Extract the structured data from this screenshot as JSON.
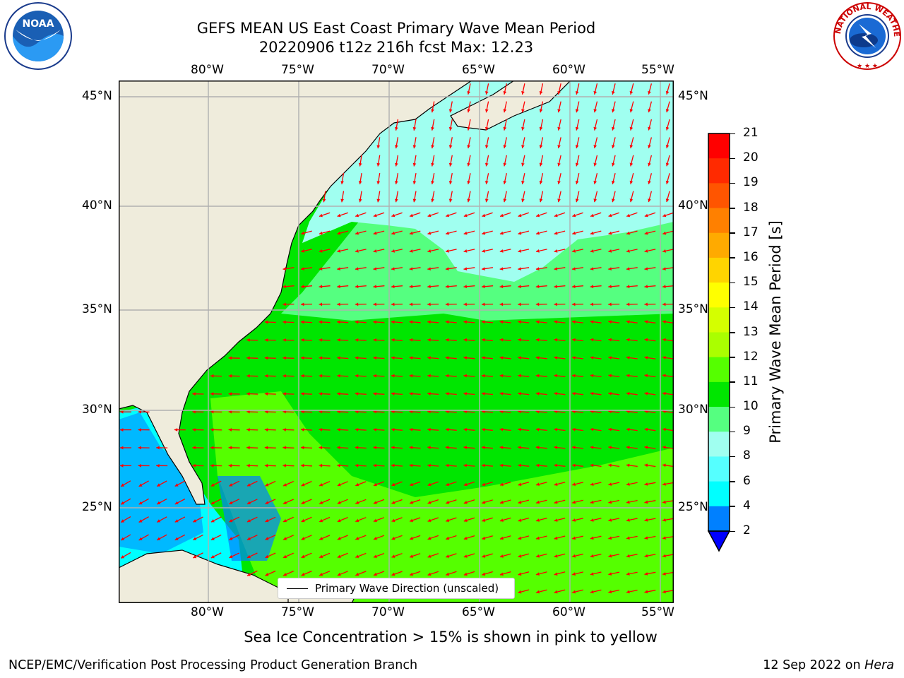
{
  "header": {
    "title_line1": "GEFS MEAN US East Coast Primary Wave Mean Period",
    "title_line2": "20220906 t12z 216h fcst   Max: 12.23"
  },
  "logos": {
    "left": {
      "name": "NOAA",
      "ring_text": "NATIONAL OCEANIC AND ATMOSPHERIC ADMINISTRATION · U.S. DEPARTMENT OF COMMERCE"
    },
    "right": {
      "name": "NATIONAL WEATHER SERVICE"
    }
  },
  "map": {
    "lon_labels": [
      "80°W",
      "75°W",
      "70°W",
      "65°W",
      "60°W",
      "55°W"
    ],
    "lat_labels": [
      "45°N",
      "40°N",
      "35°N",
      "30°N",
      "25°N"
    ],
    "legend_label": "Primary Wave Direction (unscaled)",
    "arrow_color": "#ff0000",
    "land_color": "#efecdc",
    "grid_color": "#b0b0b0"
  },
  "colorbar": {
    "label": "Primary Wave Mean Period [s]",
    "ticks": [
      "21",
      "20",
      "19",
      "18",
      "17",
      "16",
      "15",
      "14",
      "13",
      "12",
      "11",
      "10",
      "9",
      "8",
      "6",
      "4",
      "2"
    ],
    "colors_top_to_bottom": [
      "#ff0000",
      "#ff2a00",
      "#ff5500",
      "#ff8000",
      "#ffaa00",
      "#ffd400",
      "#ffff00",
      "#d4ff00",
      "#aaff00",
      "#55ff00",
      "#00e600",
      "#55ff80",
      "#a0fff0",
      "#55ffff",
      "#00ffff",
      "#0080ff"
    ],
    "extend_color": "#0000ff"
  },
  "note": "Sea Ice Concentration > 15% is shown in pink to yellow",
  "footer": {
    "left": "NCEP/EMC/Verification Post Processing Product Generation Branch",
    "right_date": "12 Sep 2022 on ",
    "right_machine": "Hera"
  }
}
